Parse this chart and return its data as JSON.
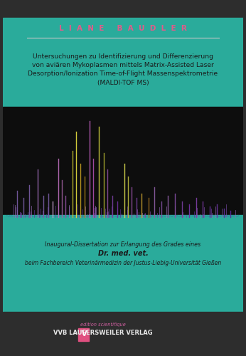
{
  "bg_top_color": "#2d2d2d",
  "teal_color": "#2aab9b",
  "author_color": "#e05c8a",
  "author_text": "LIANE BAUDLER",
  "title_line1": "Untersuchungen zu Identifizierung und Differenzierung",
  "title_line2": "von aviären Mykoplasmen mittels Matrix-Assisted Laser",
  "title_line3": "Desorption/Ionization Time-of-Flight Massenspektrometrie",
  "title_line4": "(MALDI-TOF MS)",
  "title_color": "#1a1a1a",
  "diss_line1": "Inaugural-Dissertation zur Erlangung des Grades eines",
  "diss_line2": "Dr. med. vet.",
  "diss_line3": "beim Fachbereich Veterinärmedizin der Justus-Liebig-Universität Gießen",
  "diss_color": "#1a1a1a",
  "publisher_text": "VVB LAUFERSWEILER VERLAG",
  "publisher_color": "#e8e8e8",
  "separator_color": "#c8c8c8",
  "peaks": [
    [
      20,
      0.25,
      "#7b5ea7"
    ],
    [
      30,
      0.18,
      "#7b5ea7"
    ],
    [
      38,
      0.3,
      "#7b5ea7"
    ],
    [
      50,
      0.45,
      "#9b6bb5"
    ],
    [
      58,
      0.2,
      "#7b5ea7"
    ],
    [
      65,
      0.22,
      "#7b5ea7"
    ],
    [
      72,
      0.15,
      "#c8a0d0"
    ],
    [
      80,
      0.55,
      "#c070c0"
    ],
    [
      85,
      0.35,
      "#a060a0"
    ],
    [
      90,
      0.2,
      "#9050a0"
    ],
    [
      100,
      0.62,
      "#c8c030"
    ],
    [
      105,
      0.8,
      "#e8e040"
    ],
    [
      112,
      0.5,
      "#c8a020"
    ],
    [
      118,
      0.38,
      "#a88018"
    ],
    [
      125,
      0.9,
      "#c060c0"
    ],
    [
      130,
      0.55,
      "#b050b0"
    ],
    [
      138,
      0.85,
      "#d0d040"
    ],
    [
      145,
      0.6,
      "#b0b030"
    ],
    [
      150,
      0.45,
      "#9050a0"
    ],
    [
      158,
      0.2,
      "#7840a0"
    ],
    [
      165,
      0.15,
      "#7030a0"
    ],
    [
      175,
      0.5,
      "#e0e050"
    ],
    [
      180,
      0.38,
      "#c0c040"
    ],
    [
      185,
      0.28,
      "#9050a0"
    ],
    [
      192,
      0.18,
      "#7840a0"
    ],
    [
      200,
      0.22,
      "#c8a030"
    ],
    [
      210,
      0.18,
      "#a07020"
    ],
    [
      218,
      0.28,
      "#9060a8"
    ],
    [
      228,
      0.15,
      "#8050a0"
    ],
    [
      238,
      0.2,
      "#9060a8"
    ],
    [
      248,
      0.22,
      "#8850a8"
    ],
    [
      258,
      0.15,
      "#7840a0"
    ],
    [
      268,
      0.12,
      "#7030a0"
    ],
    [
      278,
      0.18,
      "#8040a8"
    ],
    [
      288,
      0.15,
      "#7838a0"
    ],
    [
      298,
      0.1,
      "#6830a0"
    ],
    [
      308,
      0.12,
      "#7038a8"
    ],
    [
      318,
      0.08,
      "#6030a0"
    ],
    [
      328,
      0.06,
      "#5828a0"
    ]
  ]
}
